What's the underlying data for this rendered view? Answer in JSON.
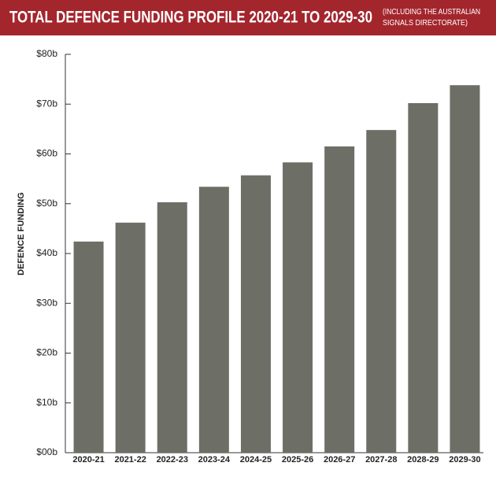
{
  "chart_data": {
    "type": "bar",
    "title": "TOTAL DEFENCE FUNDING PROFILE 2020-21 TO 2029-30",
    "subtitle": [
      "(INCLUDING THE AUSTRALIAN",
      "SIGNALS DIRECTORATE)"
    ],
    "y_label": "DEFENCE FUNDING",
    "categories": [
      "2020-21",
      "2021-22",
      "2022-23",
      "2023-24",
      "2024-25",
      "2025-26",
      "2026-27",
      "2027-28",
      "2028-29",
      "2029-30"
    ],
    "values": [
      42.4,
      46.2,
      50.3,
      53.4,
      55.7,
      58.3,
      61.5,
      64.8,
      70.2,
      73.8
    ],
    "color": "#6d6e66",
    "ylim": [
      0,
      80
    ],
    "yticks": [
      {
        "value": 0,
        "label": "$00b"
      },
      {
        "value": 10,
        "label": "$10b"
      },
      {
        "value": 20,
        "label": "$20b"
      },
      {
        "value": 30,
        "label": "$30b"
      },
      {
        "value": 40,
        "label": "$40b"
      },
      {
        "value": 50,
        "label": "$50b"
      },
      {
        "value": 60,
        "label": "$60b"
      },
      {
        "value": 70,
        "label": "$70b"
      },
      {
        "value": 80,
        "label": "$80b"
      }
    ],
    "grid": false
  }
}
